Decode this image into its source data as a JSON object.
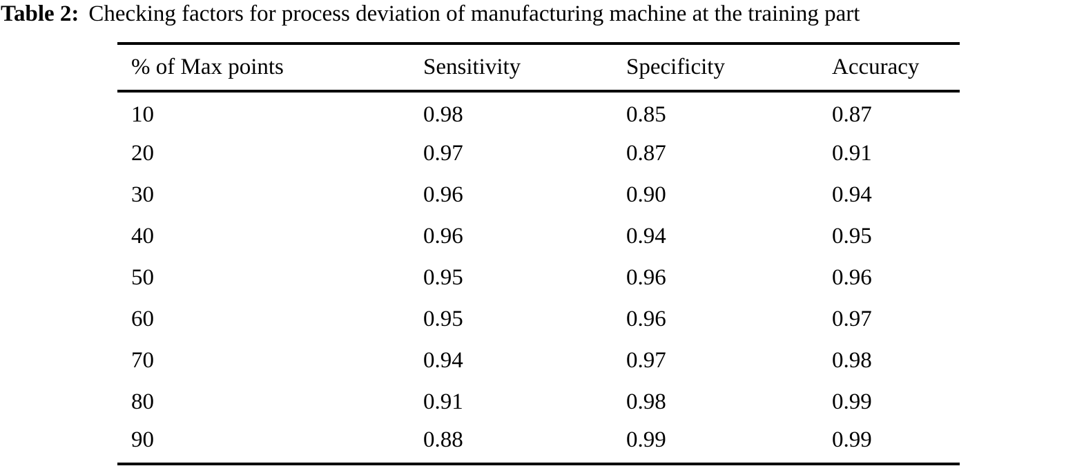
{
  "caption": {
    "label": "Table 2:",
    "text": "Checking factors for process deviation of manufacturing machine at the training part"
  },
  "table": {
    "columns": [
      "% of Max points",
      "Sensitivity",
      "Specificity",
      "Accuracy"
    ],
    "rows": [
      [
        "10",
        "0.98",
        "0.85",
        "0.87"
      ],
      [
        "20",
        "0.97",
        "0.87",
        "0.91"
      ],
      [
        "30",
        "0.96",
        "0.90",
        "0.94"
      ],
      [
        "40",
        "0.96",
        "0.94",
        "0.95"
      ],
      [
        "50",
        "0.95",
        "0.96",
        "0.96"
      ],
      [
        "60",
        "0.95",
        "0.96",
        "0.97"
      ],
      [
        "70",
        "0.94",
        "0.97",
        "0.98"
      ],
      [
        "80",
        "0.91",
        "0.98",
        "0.99"
      ],
      [
        "90",
        "0.88",
        "0.99",
        "0.99"
      ]
    ]
  },
  "chart_data": {
    "type": "table",
    "title": "Table 2: Checking factors for process deviation of manufacturing machine at the training part",
    "categories": [
      10,
      20,
      30,
      40,
      50,
      60,
      70,
      80,
      90
    ],
    "xlabel": "% of Max points",
    "series": [
      {
        "name": "Sensitivity",
        "values": [
          0.98,
          0.97,
          0.96,
          0.96,
          0.95,
          0.95,
          0.94,
          0.91,
          0.88
        ]
      },
      {
        "name": "Specificity",
        "values": [
          0.85,
          0.87,
          0.9,
          0.94,
          0.96,
          0.96,
          0.97,
          0.98,
          0.99
        ]
      },
      {
        "name": "Accuracy",
        "values": [
          0.87,
          0.91,
          0.94,
          0.95,
          0.96,
          0.97,
          0.98,
          0.99,
          0.99
        ]
      }
    ]
  }
}
